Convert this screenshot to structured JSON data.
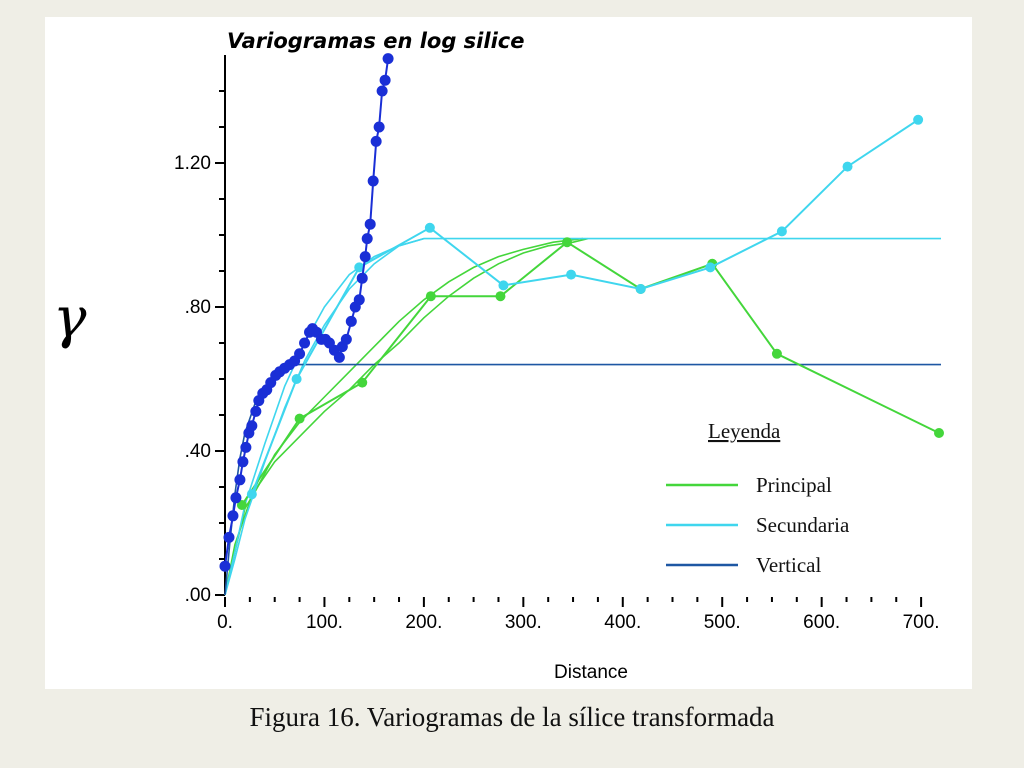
{
  "caption": "Figura 16. Variogramas de la sílice transformada",
  "chart_data": {
    "type": "line",
    "title": "Variogramas en log silice",
    "xlabel": "Distance",
    "ylabel": "γ",
    "xlim": [
      0,
      720
    ],
    "ylim": [
      0,
      1.5
    ],
    "x_ticks": [
      0,
      100,
      200,
      300,
      400,
      500,
      600,
      700
    ],
    "x_tick_labels": [
      "0.",
      "100.",
      "200.",
      "300.",
      "400.",
      "500.",
      "600.",
      "700."
    ],
    "y_ticks": [
      0,
      0.4,
      0.8,
      1.2
    ],
    "y_tick_labels": [
      ".00",
      ".40",
      ".80",
      "1.20"
    ],
    "legend": {
      "title": "Leyenda",
      "placement": "lower-right",
      "entries": [
        {
          "label": "Principal",
          "color": "#44d63b"
        },
        {
          "label": "Secundaria",
          "color": "#3fd6ee"
        },
        {
          "label": "Vertical",
          "color": "#1e57a3"
        }
      ]
    },
    "series": [
      {
        "name": "Principal",
        "kind": "experimental",
        "color": "#44d63b",
        "x": [
          17,
          75,
          138,
          207,
          277,
          344,
          418,
          490,
          555,
          718
        ],
        "y": [
          0.25,
          0.49,
          0.59,
          0.83,
          0.83,
          0.98,
          0.85,
          0.92,
          0.67,
          0.45
        ]
      },
      {
        "name": "Secundaria",
        "kind": "experimental",
        "color": "#3fd6ee",
        "x": [
          27,
          72,
          135,
          206,
          280,
          348,
          418,
          488,
          560,
          626,
          697
        ],
        "y": [
          0.28,
          0.6,
          0.91,
          1.02,
          0.86,
          0.89,
          0.85,
          0.91,
          1.01,
          1.19,
          1.32
        ]
      },
      {
        "name": "Vertical",
        "kind": "experimental",
        "color": "#1a2fd6",
        "x": [
          0,
          4,
          8,
          11,
          15,
          18,
          21,
          24,
          27,
          31,
          34,
          38,
          42,
          46,
          51,
          55,
          60,
          65,
          70,
          75,
          80,
          85,
          88,
          92,
          97,
          101,
          105,
          110,
          115,
          118,
          122,
          127,
          131,
          135,
          138,
          141,
          143,
          146,
          149,
          152,
          155,
          158,
          161,
          164
        ],
        "y": [
          0.08,
          0.16,
          0.22,
          0.27,
          0.32,
          0.37,
          0.41,
          0.45,
          0.47,
          0.51,
          0.54,
          0.56,
          0.57,
          0.59,
          0.61,
          0.62,
          0.63,
          0.64,
          0.65,
          0.67,
          0.7,
          0.73,
          0.74,
          0.73,
          0.71,
          0.71,
          0.7,
          0.68,
          0.66,
          0.69,
          0.71,
          0.76,
          0.8,
          0.82,
          0.88,
          0.94,
          0.99,
          1.03,
          1.15,
          1.26,
          1.3,
          1.4,
          1.43,
          1.49
        ]
      },
      {
        "name": "Principal modelo",
        "kind": "model",
        "color": "#44d63b",
        "x": [
          0,
          10,
          20,
          35,
          50,
          75,
          100,
          125,
          150,
          175,
          200,
          225,
          250,
          275,
          300,
          325,
          350,
          365
        ],
        "y": [
          0.0,
          0.12,
          0.24,
          0.31,
          0.37,
          0.44,
          0.51,
          0.57,
          0.64,
          0.7,
          0.77,
          0.83,
          0.88,
          0.92,
          0.95,
          0.97,
          0.98,
          0.99
        ]
      },
      {
        "name": "Principal modelo 2",
        "kind": "model",
        "color": "#44d63b",
        "x": [
          0,
          10,
          25,
          50,
          75,
          100,
          125,
          150,
          175,
          200,
          225,
          250,
          275,
          300,
          330,
          360
        ],
        "y": [
          0.0,
          0.14,
          0.26,
          0.39,
          0.48,
          0.55,
          0.62,
          0.69,
          0.76,
          0.82,
          0.87,
          0.91,
          0.94,
          0.96,
          0.98,
          0.99
        ]
      },
      {
        "name": "Secundaria modelo",
        "kind": "model",
        "color": "#3fd6ee",
        "x": [
          0,
          10,
          20,
          40,
          60,
          80,
          100,
          125,
          150,
          175,
          200,
          215,
          720
        ],
        "y": [
          0.0,
          0.12,
          0.25,
          0.42,
          0.58,
          0.7,
          0.8,
          0.89,
          0.94,
          0.97,
          0.99,
          0.99,
          0.99
        ]
      },
      {
        "name": "Secundaria modelo 2",
        "kind": "model",
        "color": "#3fd6ee",
        "x": [
          0,
          10,
          20,
          40,
          60,
          80,
          100,
          125,
          150,
          175,
          200
        ],
        "y": [
          0.0,
          0.1,
          0.21,
          0.37,
          0.52,
          0.65,
          0.75,
          0.85,
          0.92,
          0.97,
          0.99
        ]
      },
      {
        "name": "Vertical modelo",
        "kind": "model",
        "color": "#1e57a3",
        "x": [
          0,
          5,
          10,
          15,
          20,
          30,
          40,
          50,
          60,
          70,
          80,
          720
        ],
        "y": [
          0.0,
          0.15,
          0.28,
          0.38,
          0.45,
          0.53,
          0.58,
          0.61,
          0.63,
          0.64,
          0.64,
          0.64
        ]
      }
    ]
  }
}
